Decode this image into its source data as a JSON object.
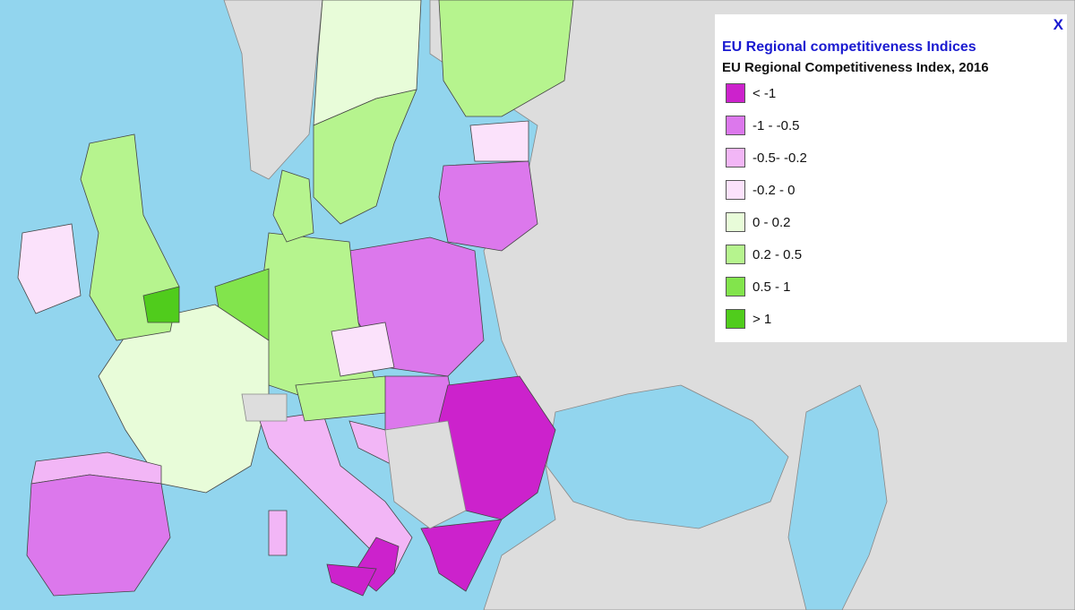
{
  "legend": {
    "close": "X",
    "title": "EU Regional competitiveness Indices",
    "subtitle": "EU Regional Competitiveness Index, 2016",
    "items": [
      {
        "label": "< -1",
        "color": "#cc22cc"
      },
      {
        "label": "-1 - -0.5",
        "color": "#dc78ec"
      },
      {
        "label": "-0.5- -0.2",
        "color": "#f2b6f6"
      },
      {
        "label": "-0.2 - 0",
        "color": "#fbe2fb"
      },
      {
        "label": "0 - 0.2",
        "color": "#e8fcd9"
      },
      {
        "label": "0.2 - 0.5",
        "color": "#b6f48e"
      },
      {
        "label": "0.5 - 1",
        "color": "#82e44c"
      },
      {
        "label": "> 1",
        "color": "#50cc1c"
      }
    ]
  }
}
